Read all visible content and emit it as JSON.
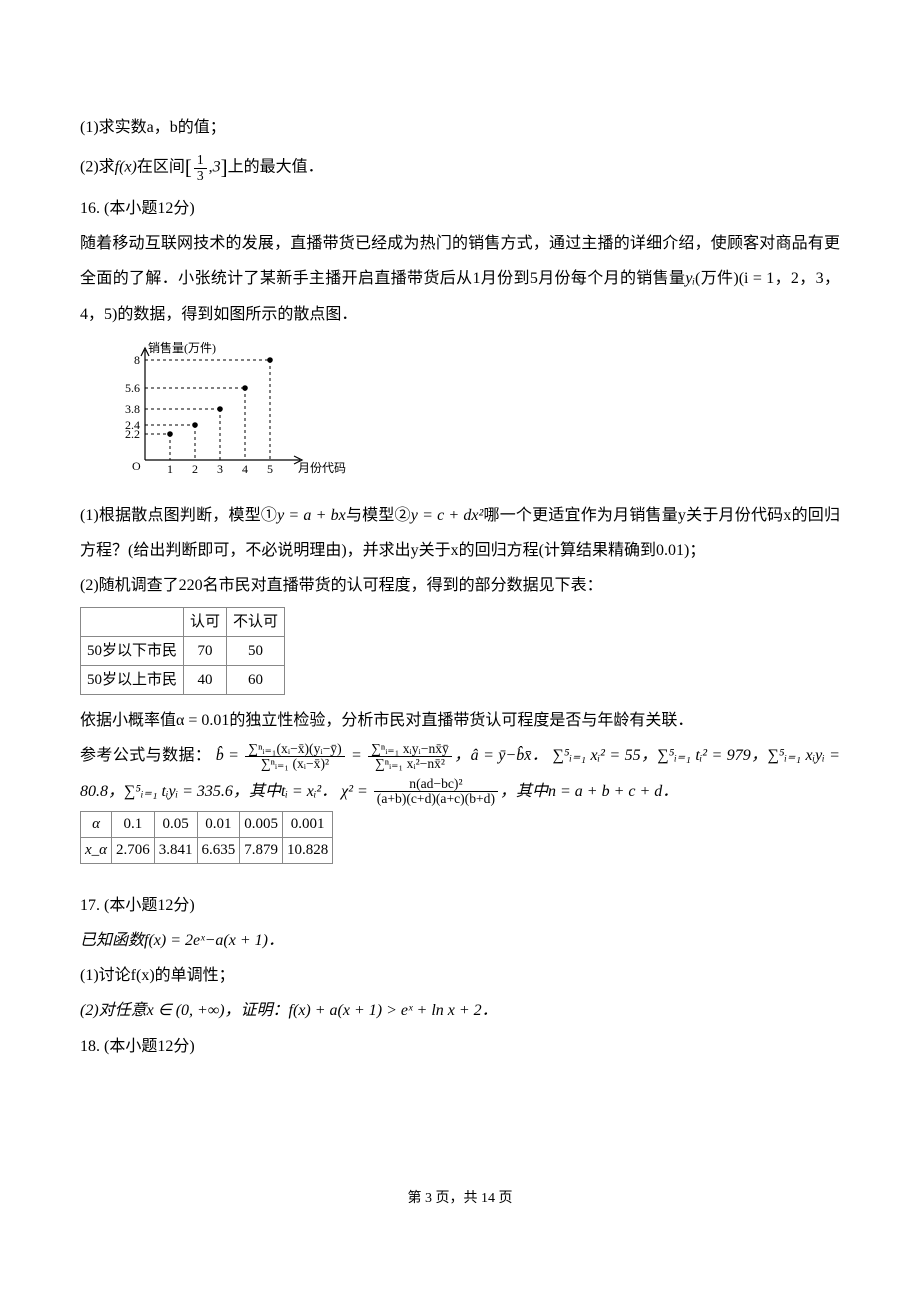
{
  "q15": {
    "p1": "(1)求实数a，b的值；",
    "p2_prefix": "(2)求",
    "p2_func": "f(x)",
    "p2_mid": "在区间",
    "interval_lo_num": "1",
    "interval_lo_den": "3",
    "interval_hi": "3",
    "p2_suffix": "上的最大值．"
  },
  "q16": {
    "header": "16. (本小题12分)",
    "intro_a": "随着移动互联网技术的发展，直播带货已经成为热门的销售方式，通过主播的详细介绍，使顾客对商品有更全面的了解．小张统计了某新手主播开启直播带货后从1月份到5月份每个月的销售量",
    "intro_yi": "yᵢ",
    "intro_b": "(万件)(i = 1，2，3，4，5)的数据，得到如图所示的散点图．",
    "scatter": {
      "y_label": "销售量(万件)",
      "x_label": "月份代码",
      "y_ticks": [
        "8",
        "5.6",
        "3.8",
        "2.4",
        "2.2"
      ],
      "y_tick_pos": [
        20,
        48,
        69,
        85,
        94
      ],
      "x_ticks": [
        "1",
        "2",
        "3",
        "4",
        "5"
      ],
      "x_pos": [
        70,
        95,
        120,
        145,
        170
      ],
      "origin_label": "O",
      "points": [
        {
          "x": 70,
          "y": 94
        },
        {
          "x": 95,
          "y": 85
        },
        {
          "x": 120,
          "y": 69
        },
        {
          "x": 145,
          "y": 48
        },
        {
          "x": 170,
          "y": 20
        }
      ],
      "axis_color": "#000000",
      "point_color": "#000000"
    },
    "part1_a": "(1)根据散点图判断，模型①",
    "model1": "y = a + bx",
    "part1_b": "与模型②",
    "model2": "y = c + dx²",
    "part1_c": "哪一个更适宜作为月销售量y关于月份代码x的回归方程？(给出判断即可，不必说明理由)，并求出y关于x的回归方程(计算结果精确到0.01)；",
    "part2_intro": "(2)随机调查了220名市民对直播带货的认可程度，得到的部分数据见下表：",
    "survey": {
      "cols": [
        "",
        "认可",
        "不认可"
      ],
      "rows": [
        [
          "50岁以下市民",
          "70",
          "50"
        ],
        [
          "50岁以上市民",
          "40",
          "60"
        ]
      ]
    },
    "test_line": "依据小概率值α = 0.01的独立性检验，分析市民对直播带货认可程度是否与年龄有关联．",
    "ref_prefix": "参考公式与数据：",
    "b_hat": "b̂",
    "eq_sign": " = ",
    "frac1_num": "∑ⁿᵢ₌₁(xᵢ−x̄)(yᵢ−ȳ)",
    "frac1_den": "∑ⁿᵢ₌₁ (xᵢ−x̄)²",
    "frac2_num": "∑ⁿᵢ₌₁ xᵢyᵢ−nx̄ȳ",
    "frac2_den": "∑ⁿᵢ₌₁ xᵢ²−nx̄²",
    "a_hat_eq": "，â = ȳ−b̂x̄．",
    "sums_a": "∑⁵ᵢ₌₁ xᵢ² = 55，",
    "sums_b": "∑⁵ᵢ₌₁ tᵢ² = 979，",
    "sums_c": "∑⁵ᵢ₌₁ xᵢyᵢ = 80.8，",
    "sums_d": "∑⁵ᵢ₌₁ tᵢyᵢ = 335.6，",
    "t_def": "其中tᵢ = xᵢ²．",
    "chi2_lhs": "χ² = ",
    "chi2_num": "n(ad−bc)²",
    "chi2_den": "(a+b)(c+d)(a+c)(b+d)",
    "n_def": "，其中n = a + b + c + d．",
    "crit": {
      "row1": [
        "α",
        "0.1",
        "0.05",
        "0.01",
        "0.005",
        "0.001"
      ],
      "row2": [
        "x_α",
        "2.706",
        "3.841",
        "6.635",
        "7.879",
        "10.828"
      ]
    }
  },
  "q17": {
    "header": "17. (本小题12分)",
    "func_def": "已知函数f(x) = 2eˣ−a(x + 1)．",
    "p1": "(1)讨论f(x)的单调性；",
    "p2": "(2)对任意x ∈ (0, +∞)，证明：f(x) + a(x + 1) > eˣ + ln x + 2．"
  },
  "q18": {
    "header": "18. (本小题12分)"
  },
  "footer": "第 3 页，共 14 页"
}
